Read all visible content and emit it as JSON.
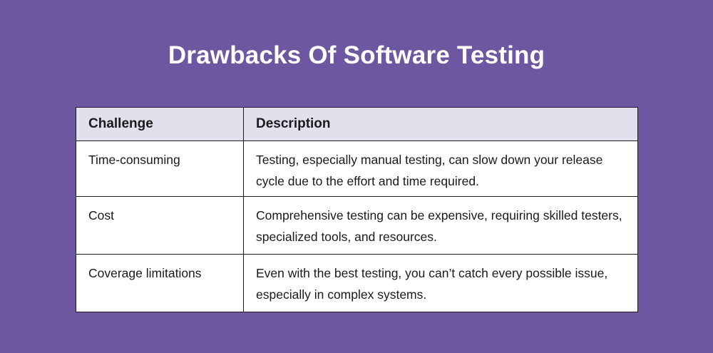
{
  "title": "Drawbacks Of Software Testing",
  "table": {
    "headers": [
      "Challenge",
      "Description"
    ],
    "rows": [
      {
        "challenge": "Time-consuming",
        "description": "Testing, especially manual testing, can slow down your release cycle due to the effort and time required."
      },
      {
        "challenge": "Cost",
        "description": "Comprehensive testing can be expensive, requiring skilled testers, specialized tools, and resources."
      },
      {
        "challenge": "Coverage limitations",
        "description": "Even with the best testing, you can’t catch every possible issue, especially in complex systems."
      }
    ]
  }
}
